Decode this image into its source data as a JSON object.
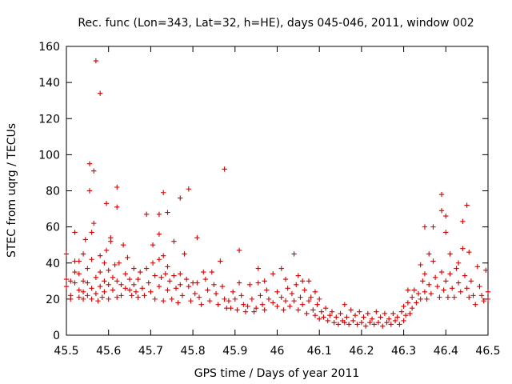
{
  "chart_data": {
    "type": "scatter",
    "title": "Rec. func (Lon=343, Lat=32, h=HE), days 045-046, 2011, window 002",
    "xlabel": "GPS time / Days of year 2011",
    "ylabel": "STEC from uqrg / TECUs",
    "xlim": [
      45.5,
      46.5
    ],
    "ylim": [
      0,
      160
    ],
    "xticks": [
      "45.5",
      "45.6",
      "45.7",
      "45.8",
      "45.9",
      "46",
      "46.1",
      "46.2",
      "46.3",
      "46.4",
      "46.5"
    ],
    "yticks": [
      "0",
      "20",
      "40",
      "60",
      "80",
      "100",
      "120",
      "140",
      "160"
    ],
    "marker": "+",
    "color": "#d40000",
    "grid": false,
    "series": [
      {
        "name": "STEC",
        "points": [
          [
            45.5,
            45
          ],
          [
            45.5,
            31
          ],
          [
            45.5,
            27
          ],
          [
            45.51,
            22
          ],
          [
            45.51,
            30
          ],
          [
            45.51,
            20
          ],
          [
            45.52,
            57
          ],
          [
            45.52,
            41
          ],
          [
            45.52,
            35
          ],
          [
            45.52,
            29
          ],
          [
            45.53,
            21
          ],
          [
            45.53,
            25
          ],
          [
            45.53,
            34
          ],
          [
            45.53,
            41
          ],
          [
            45.54,
            30
          ],
          [
            45.54,
            24
          ],
          [
            45.54,
            20
          ],
          [
            45.54,
            45
          ],
          [
            45.545,
            53
          ],
          [
            45.55,
            29
          ],
          [
            45.55,
            22
          ],
          [
            45.55,
            37
          ],
          [
            45.555,
            95
          ],
          [
            45.555,
            80
          ],
          [
            45.56,
            57
          ],
          [
            45.56,
            42
          ],
          [
            45.56,
            26
          ],
          [
            45.56,
            20
          ],
          [
            45.565,
            91
          ],
          [
            45.565,
            62
          ],
          [
            45.57,
            152
          ],
          [
            45.57,
            32
          ],
          [
            45.57,
            23
          ],
          [
            45.575,
            19
          ],
          [
            45.58,
            134
          ],
          [
            45.58,
            44
          ],
          [
            45.58,
            35
          ],
          [
            45.58,
            27
          ],
          [
            45.585,
            21
          ],
          [
            45.59,
            40
          ],
          [
            45.59,
            30
          ],
          [
            45.59,
            24
          ],
          [
            45.595,
            73
          ],
          [
            45.595,
            47
          ],
          [
            45.6,
            36
          ],
          [
            45.6,
            28
          ],
          [
            45.6,
            20
          ],
          [
            45.605,
            54
          ],
          [
            45.605,
            52
          ],
          [
            45.61,
            32
          ],
          [
            45.61,
            25
          ],
          [
            45.615,
            39
          ],
          [
            45.62,
            82
          ],
          [
            45.62,
            71
          ],
          [
            45.62,
            30
          ],
          [
            45.62,
            21
          ],
          [
            45.625,
            40
          ],
          [
            45.63,
            28
          ],
          [
            45.63,
            22
          ],
          [
            45.635,
            50
          ],
          [
            45.64,
            34
          ],
          [
            45.64,
            26
          ],
          [
            45.645,
            43
          ],
          [
            45.65,
            31
          ],
          [
            45.65,
            25
          ],
          [
            45.655,
            22
          ],
          [
            45.66,
            37
          ],
          [
            45.66,
            28
          ],
          [
            45.665,
            24
          ],
          [
            45.67,
            31
          ],
          [
            45.67,
            21
          ],
          [
            45.675,
            35
          ],
          [
            45.68,
            26
          ],
          [
            45.685,
            22
          ],
          [
            45.69,
            67
          ],
          [
            45.69,
            37
          ],
          [
            45.695,
            29
          ],
          [
            45.7,
            24
          ],
          [
            45.705,
            50
          ],
          [
            45.705,
            40
          ],
          [
            45.71,
            33
          ],
          [
            45.71,
            20
          ],
          [
            45.72,
            67
          ],
          [
            45.72,
            56
          ],
          [
            45.72,
            42
          ],
          [
            45.72,
            27
          ],
          [
            45.725,
            32
          ],
          [
            45.73,
            79
          ],
          [
            45.73,
            44
          ],
          [
            45.73,
            19
          ],
          [
            45.735,
            34
          ],
          [
            45.74,
            68
          ],
          [
            45.74,
            38
          ],
          [
            45.74,
            25
          ],
          [
            45.745,
            30
          ],
          [
            45.75,
            20
          ],
          [
            45.755,
            52
          ],
          [
            45.755,
            33
          ],
          [
            45.76,
            26
          ],
          [
            45.765,
            18
          ],
          [
            45.77,
            76
          ],
          [
            45.77,
            34
          ],
          [
            45.77,
            28
          ],
          [
            45.775,
            22
          ],
          [
            45.78,
            45
          ],
          [
            45.785,
            31
          ],
          [
            45.79,
            81
          ],
          [
            45.79,
            27
          ],
          [
            45.795,
            19
          ],
          [
            45.8,
            29
          ],
          [
            45.805,
            23
          ],
          [
            45.81,
            54
          ],
          [
            45.81,
            29
          ],
          [
            45.815,
            21
          ],
          [
            45.82,
            17
          ],
          [
            45.825,
            35
          ],
          [
            45.83,
            31
          ],
          [
            45.835,
            25
          ],
          [
            45.84,
            19
          ],
          [
            45.845,
            35
          ],
          [
            45.85,
            28
          ],
          [
            45.855,
            23
          ],
          [
            45.86,
            17
          ],
          [
            45.865,
            41
          ],
          [
            45.87,
            27
          ],
          [
            45.875,
            20
          ],
          [
            45.875,
            92
          ],
          [
            45.88,
            15
          ],
          [
            45.885,
            19
          ],
          [
            45.89,
            15
          ],
          [
            45.895,
            24
          ],
          [
            45.9,
            20
          ],
          [
            45.905,
            14
          ],
          [
            45.91,
            29
          ],
          [
            45.91,
            47
          ],
          [
            45.915,
            22
          ],
          [
            45.92,
            17
          ],
          [
            45.925,
            13
          ],
          [
            45.93,
            16
          ],
          [
            45.935,
            28
          ],
          [
            45.94,
            20
          ],
          [
            45.945,
            13
          ],
          [
            45.95,
            15
          ],
          [
            45.955,
            37
          ],
          [
            45.955,
            29
          ],
          [
            45.96,
            22
          ],
          [
            45.965,
            17
          ],
          [
            45.97,
            30
          ],
          [
            45.97,
            14
          ],
          [
            45.975,
            25
          ],
          [
            45.98,
            20
          ],
          [
            45.99,
            34
          ],
          [
            45.99,
            18
          ],
          [
            46.0,
            24
          ],
          [
            46.0,
            16
          ],
          [
            46.01,
            37
          ],
          [
            46.01,
            21
          ],
          [
            46.015,
            14
          ],
          [
            46.02,
            31
          ],
          [
            46.02,
            19
          ],
          [
            46.025,
            26
          ],
          [
            46.03,
            16
          ],
          [
            46.035,
            23
          ],
          [
            46.04,
            45
          ],
          [
            46.04,
            19
          ],
          [
            46.045,
            28
          ],
          [
            46.05,
            33
          ],
          [
            46.05,
            14
          ],
          [
            46.055,
            21
          ],
          [
            46.06,
            30
          ],
          [
            46.06,
            17
          ],
          [
            46.065,
            25
          ],
          [
            46.07,
            12
          ],
          [
            46.075,
            30
          ],
          [
            46.075,
            19
          ],
          [
            46.08,
            21
          ],
          [
            46.085,
            14
          ],
          [
            46.09,
            24
          ],
          [
            46.09,
            11
          ],
          [
            46.095,
            17
          ],
          [
            46.1,
            9
          ],
          [
            46.1,
            20
          ],
          [
            46.105,
            13
          ],
          [
            46.11,
            10
          ],
          [
            46.115,
            15
          ],
          [
            46.12,
            8
          ],
          [
            46.125,
            11
          ],
          [
            46.13,
            13
          ],
          [
            46.135,
            7
          ],
          [
            46.14,
            10
          ],
          [
            46.145,
            6
          ],
          [
            46.15,
            12
          ],
          [
            46.155,
            8
          ],
          [
            46.16,
            17
          ],
          [
            46.16,
            7
          ],
          [
            46.165,
            10
          ],
          [
            46.17,
            6
          ],
          [
            46.175,
            14
          ],
          [
            46.18,
            8
          ],
          [
            46.185,
            11
          ],
          [
            46.19,
            6
          ],
          [
            46.195,
            13
          ],
          [
            46.2,
            7
          ],
          [
            46.205,
            10
          ],
          [
            46.21,
            5
          ],
          [
            46.215,
            12
          ],
          [
            46.22,
            7
          ],
          [
            46.225,
            9
          ],
          [
            46.23,
            6
          ],
          [
            46.235,
            13
          ],
          [
            46.24,
            7
          ],
          [
            46.245,
            10
          ],
          [
            46.25,
            5
          ],
          [
            46.255,
            12
          ],
          [
            46.26,
            7
          ],
          [
            46.265,
            9
          ],
          [
            46.27,
            6
          ],
          [
            46.275,
            12
          ],
          [
            46.28,
            8
          ],
          [
            46.285,
            10
          ],
          [
            46.29,
            6
          ],
          [
            46.295,
            13
          ],
          [
            46.3,
            8
          ],
          [
            46.3,
            16
          ],
          [
            46.305,
            11
          ],
          [
            46.31,
            25
          ],
          [
            46.31,
            18
          ],
          [
            46.315,
            12
          ],
          [
            46.32,
            21
          ],
          [
            46.32,
            15
          ],
          [
            46.325,
            25
          ],
          [
            46.33,
            18
          ],
          [
            46.335,
            23
          ],
          [
            46.34,
            39
          ],
          [
            46.34,
            20
          ],
          [
            46.345,
            30
          ],
          [
            46.35,
            60
          ],
          [
            46.35,
            34
          ],
          [
            46.35,
            24
          ],
          [
            46.355,
            20
          ],
          [
            46.36,
            45
          ],
          [
            46.36,
            28
          ],
          [
            46.365,
            23
          ],
          [
            46.37,
            41
          ],
          [
            46.37,
            60
          ],
          [
            46.375,
            32
          ],
          [
            46.38,
            27
          ],
          [
            46.385,
            21
          ],
          [
            46.39,
            78
          ],
          [
            46.39,
            69
          ],
          [
            46.39,
            35
          ],
          [
            46.395,
            25
          ],
          [
            46.4,
            66
          ],
          [
            46.4,
            57
          ],
          [
            46.4,
            30
          ],
          [
            46.405,
            21
          ],
          [
            46.41,
            45
          ],
          [
            46.41,
            34
          ],
          [
            46.415,
            26
          ],
          [
            46.42,
            21
          ],
          [
            46.425,
            37
          ],
          [
            46.43,
            40
          ],
          [
            46.43,
            29
          ],
          [
            46.435,
            24
          ],
          [
            46.44,
            63
          ],
          [
            46.44,
            48
          ],
          [
            46.445,
            33
          ],
          [
            46.45,
            72
          ],
          [
            46.45,
            26
          ],
          [
            46.455,
            46
          ],
          [
            46.455,
            21
          ],
          [
            46.46,
            30
          ],
          [
            46.465,
            22
          ],
          [
            46.47,
            17
          ],
          [
            46.475,
            38
          ],
          [
            46.48,
            27
          ],
          [
            46.485,
            22
          ],
          [
            46.49,
            19
          ],
          [
            46.495,
            36
          ],
          [
            46.5,
            24
          ],
          [
            46.5,
            20
          ]
        ]
      }
    ]
  }
}
